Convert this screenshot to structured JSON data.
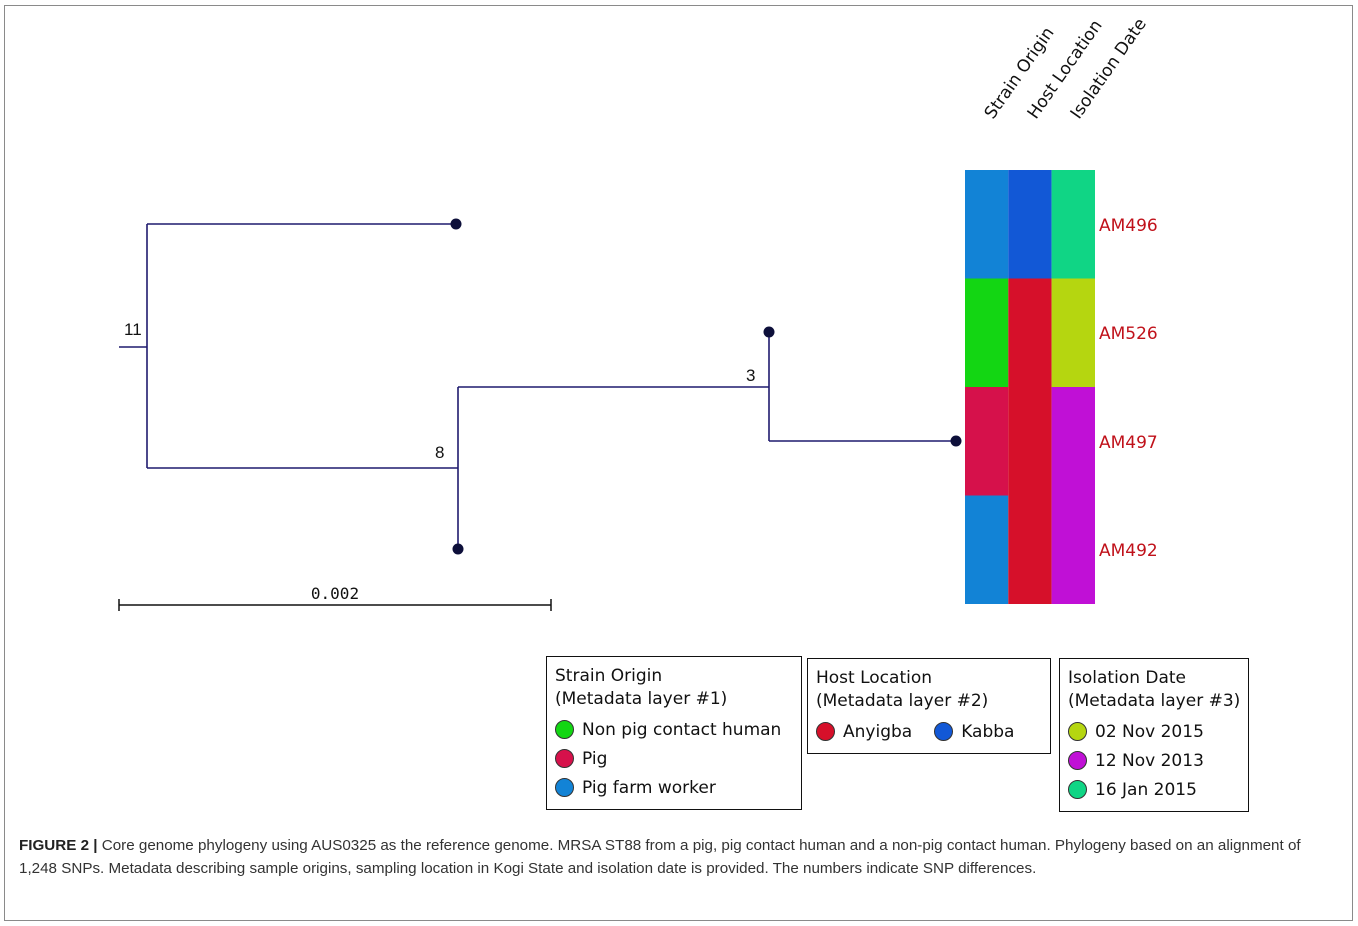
{
  "tree": {
    "scale_label": "0.002",
    "branch_labels": {
      "root": "11",
      "inner": "8",
      "sub": "3"
    },
    "branch_color": "#1f1a6e"
  },
  "heatmap": {
    "columns": [
      "Strain Origin",
      "Host Location",
      "Isolation Date"
    ],
    "rows": [
      {
        "label": "AM496",
        "colors": [
          "#1283d6",
          "#1258d6",
          "#10d585"
        ]
      },
      {
        "label": "AM526",
        "colors": [
          "#13d613",
          "#d6102a",
          "#b5d610"
        ]
      },
      {
        "label": "AM497",
        "colors": [
          "#d6114b",
          "#d6102a",
          "#c010d6"
        ]
      },
      {
        "label": "AM492",
        "colors": [
          "#1283d6",
          "#d6102a",
          "#c010d6"
        ]
      }
    ],
    "label_color": "#c0111a"
  },
  "legends": {
    "strain_origin": {
      "title": "Strain Origin",
      "subtitle": "(Metadata layer #1)",
      "items": [
        {
          "label": "Non pig contact human",
          "color": "#13d613"
        },
        {
          "label": "Pig",
          "color": "#d6114b"
        },
        {
          "label": "Pig farm worker",
          "color": "#1283d6"
        }
      ]
    },
    "host_location": {
      "title": "Host Location",
      "subtitle": "(Metadata layer #2)",
      "items": [
        {
          "label": "Anyigba",
          "color": "#d6102a"
        },
        {
          "label": "Kabba",
          "color": "#1258d6"
        }
      ]
    },
    "isolation_date": {
      "title": "Isolation Date",
      "subtitle": "(Metadata layer #3)",
      "items": [
        {
          "label": "02 Nov 2015",
          "color": "#b5d610"
        },
        {
          "label": "12 Nov 2013",
          "color": "#c010d6"
        },
        {
          "label": "16 Jan 2015",
          "color": "#10d585"
        }
      ]
    }
  },
  "caption": {
    "label": "FIGURE 2 |",
    "text": " Core genome phylogeny using AUS0325 as the reference genome. MRSA ST88 from a pig, pig contact human and a non-pig contact human. Phylogeny based on an alignment of 1,248 SNPs. Metadata describing sample origins, sampling location in Kogi State and isolation date is provided. The numbers indicate SNP differences."
  }
}
